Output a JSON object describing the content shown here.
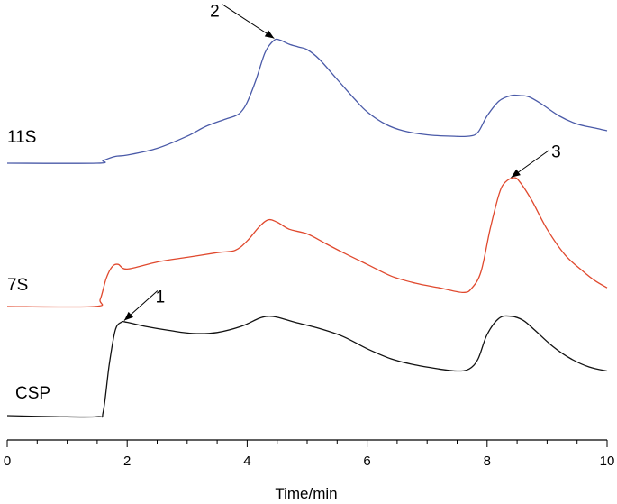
{
  "chart_data": {
    "type": "line",
    "title": "",
    "xlabel": "Time/min",
    "ylabel": "",
    "xlim": [
      0,
      10
    ],
    "x_ticks": [
      "0",
      "2",
      "4",
      "6",
      "8",
      "10"
    ],
    "grid": false,
    "legend": "none",
    "series": [
      {
        "name": "11S",
        "color": "#4a5aa8",
        "points": [
          [
            0.0,
            0.0
          ],
          [
            1.5,
            0.0
          ],
          [
            1.6,
            0.02
          ],
          [
            1.8,
            0.05
          ],
          [
            2.0,
            0.06
          ],
          [
            2.5,
            0.11
          ],
          [
            3.0,
            0.2
          ],
          [
            3.3,
            0.27
          ],
          [
            3.6,
            0.32
          ],
          [
            3.8,
            0.35
          ],
          [
            3.9,
            0.38
          ],
          [
            4.0,
            0.45
          ],
          [
            4.15,
            0.62
          ],
          [
            4.3,
            0.82
          ],
          [
            4.45,
            0.91
          ],
          [
            4.55,
            0.91
          ],
          [
            4.7,
            0.88
          ],
          [
            4.85,
            0.86
          ],
          [
            5.0,
            0.84
          ],
          [
            5.2,
            0.77
          ],
          [
            5.5,
            0.62
          ],
          [
            5.8,
            0.47
          ],
          [
            6.0,
            0.38
          ],
          [
            6.3,
            0.29
          ],
          [
            6.6,
            0.24
          ],
          [
            7.0,
            0.21
          ],
          [
            7.4,
            0.2
          ],
          [
            7.7,
            0.2
          ],
          [
            7.85,
            0.23
          ],
          [
            8.0,
            0.35
          ],
          [
            8.2,
            0.46
          ],
          [
            8.4,
            0.5
          ],
          [
            8.55,
            0.5
          ],
          [
            8.7,
            0.49
          ],
          [
            8.9,
            0.44
          ],
          [
            9.2,
            0.35
          ],
          [
            9.5,
            0.29
          ],
          [
            9.8,
            0.26
          ],
          [
            10.0,
            0.24
          ]
        ]
      },
      {
        "name": "7S",
        "color": "#e0492e",
        "points": [
          [
            0.0,
            0.0
          ],
          [
            1.45,
            0.0
          ],
          [
            1.55,
            0.03
          ],
          [
            1.65,
            0.12
          ],
          [
            1.75,
            0.17
          ],
          [
            1.85,
            0.18
          ],
          [
            2.0,
            0.16
          ],
          [
            2.5,
            0.19
          ],
          [
            3.0,
            0.21
          ],
          [
            3.5,
            0.23
          ],
          [
            3.8,
            0.24
          ],
          [
            4.0,
            0.28
          ],
          [
            4.2,
            0.34
          ],
          [
            4.35,
            0.37
          ],
          [
            4.5,
            0.36
          ],
          [
            4.7,
            0.33
          ],
          [
            5.0,
            0.31
          ],
          [
            5.3,
            0.27
          ],
          [
            5.6,
            0.23
          ],
          [
            6.0,
            0.18
          ],
          [
            6.4,
            0.13
          ],
          [
            6.8,
            0.1
          ],
          [
            7.2,
            0.08
          ],
          [
            7.6,
            0.06
          ],
          [
            7.75,
            0.08
          ],
          [
            7.9,
            0.15
          ],
          [
            8.05,
            0.33
          ],
          [
            8.2,
            0.48
          ],
          [
            8.3,
            0.53
          ],
          [
            8.45,
            0.55
          ],
          [
            8.55,
            0.53
          ],
          [
            8.75,
            0.45
          ],
          [
            9.0,
            0.33
          ],
          [
            9.3,
            0.22
          ],
          [
            9.6,
            0.15
          ],
          [
            9.8,
            0.11
          ],
          [
            10.0,
            0.08
          ]
        ]
      },
      {
        "name": "CSP",
        "color": "#111111",
        "points": [
          [
            0.0,
            0.0
          ],
          [
            0.8,
            -0.005
          ],
          [
            1.5,
            -0.005
          ],
          [
            1.6,
            0.02
          ],
          [
            1.7,
            0.25
          ],
          [
            1.8,
            0.42
          ],
          [
            1.9,
            0.46
          ],
          [
            2.0,
            0.46
          ],
          [
            2.3,
            0.44
          ],
          [
            2.7,
            0.42
          ],
          [
            3.1,
            0.405
          ],
          [
            3.5,
            0.41
          ],
          [
            3.9,
            0.44
          ],
          [
            4.2,
            0.48
          ],
          [
            4.35,
            0.49
          ],
          [
            4.5,
            0.485
          ],
          [
            4.8,
            0.46
          ],
          [
            5.2,
            0.43
          ],
          [
            5.6,
            0.39
          ],
          [
            6.0,
            0.33
          ],
          [
            6.4,
            0.28
          ],
          [
            6.8,
            0.25
          ],
          [
            7.2,
            0.23
          ],
          [
            7.5,
            0.22
          ],
          [
            7.7,
            0.23
          ],
          [
            7.85,
            0.28
          ],
          [
            8.0,
            0.4
          ],
          [
            8.2,
            0.48
          ],
          [
            8.4,
            0.49
          ],
          [
            8.6,
            0.47
          ],
          [
            8.8,
            0.42
          ],
          [
            9.1,
            0.34
          ],
          [
            9.4,
            0.28
          ],
          [
            9.7,
            0.24
          ],
          [
            10.0,
            0.22
          ]
        ]
      }
    ],
    "annotations": [
      {
        "label": "1",
        "series": "CSP",
        "x": 1.95
      },
      {
        "label": "2",
        "series": "11S",
        "x": 4.45
      },
      {
        "label": "3",
        "series": "7S",
        "x": 8.4
      }
    ]
  }
}
